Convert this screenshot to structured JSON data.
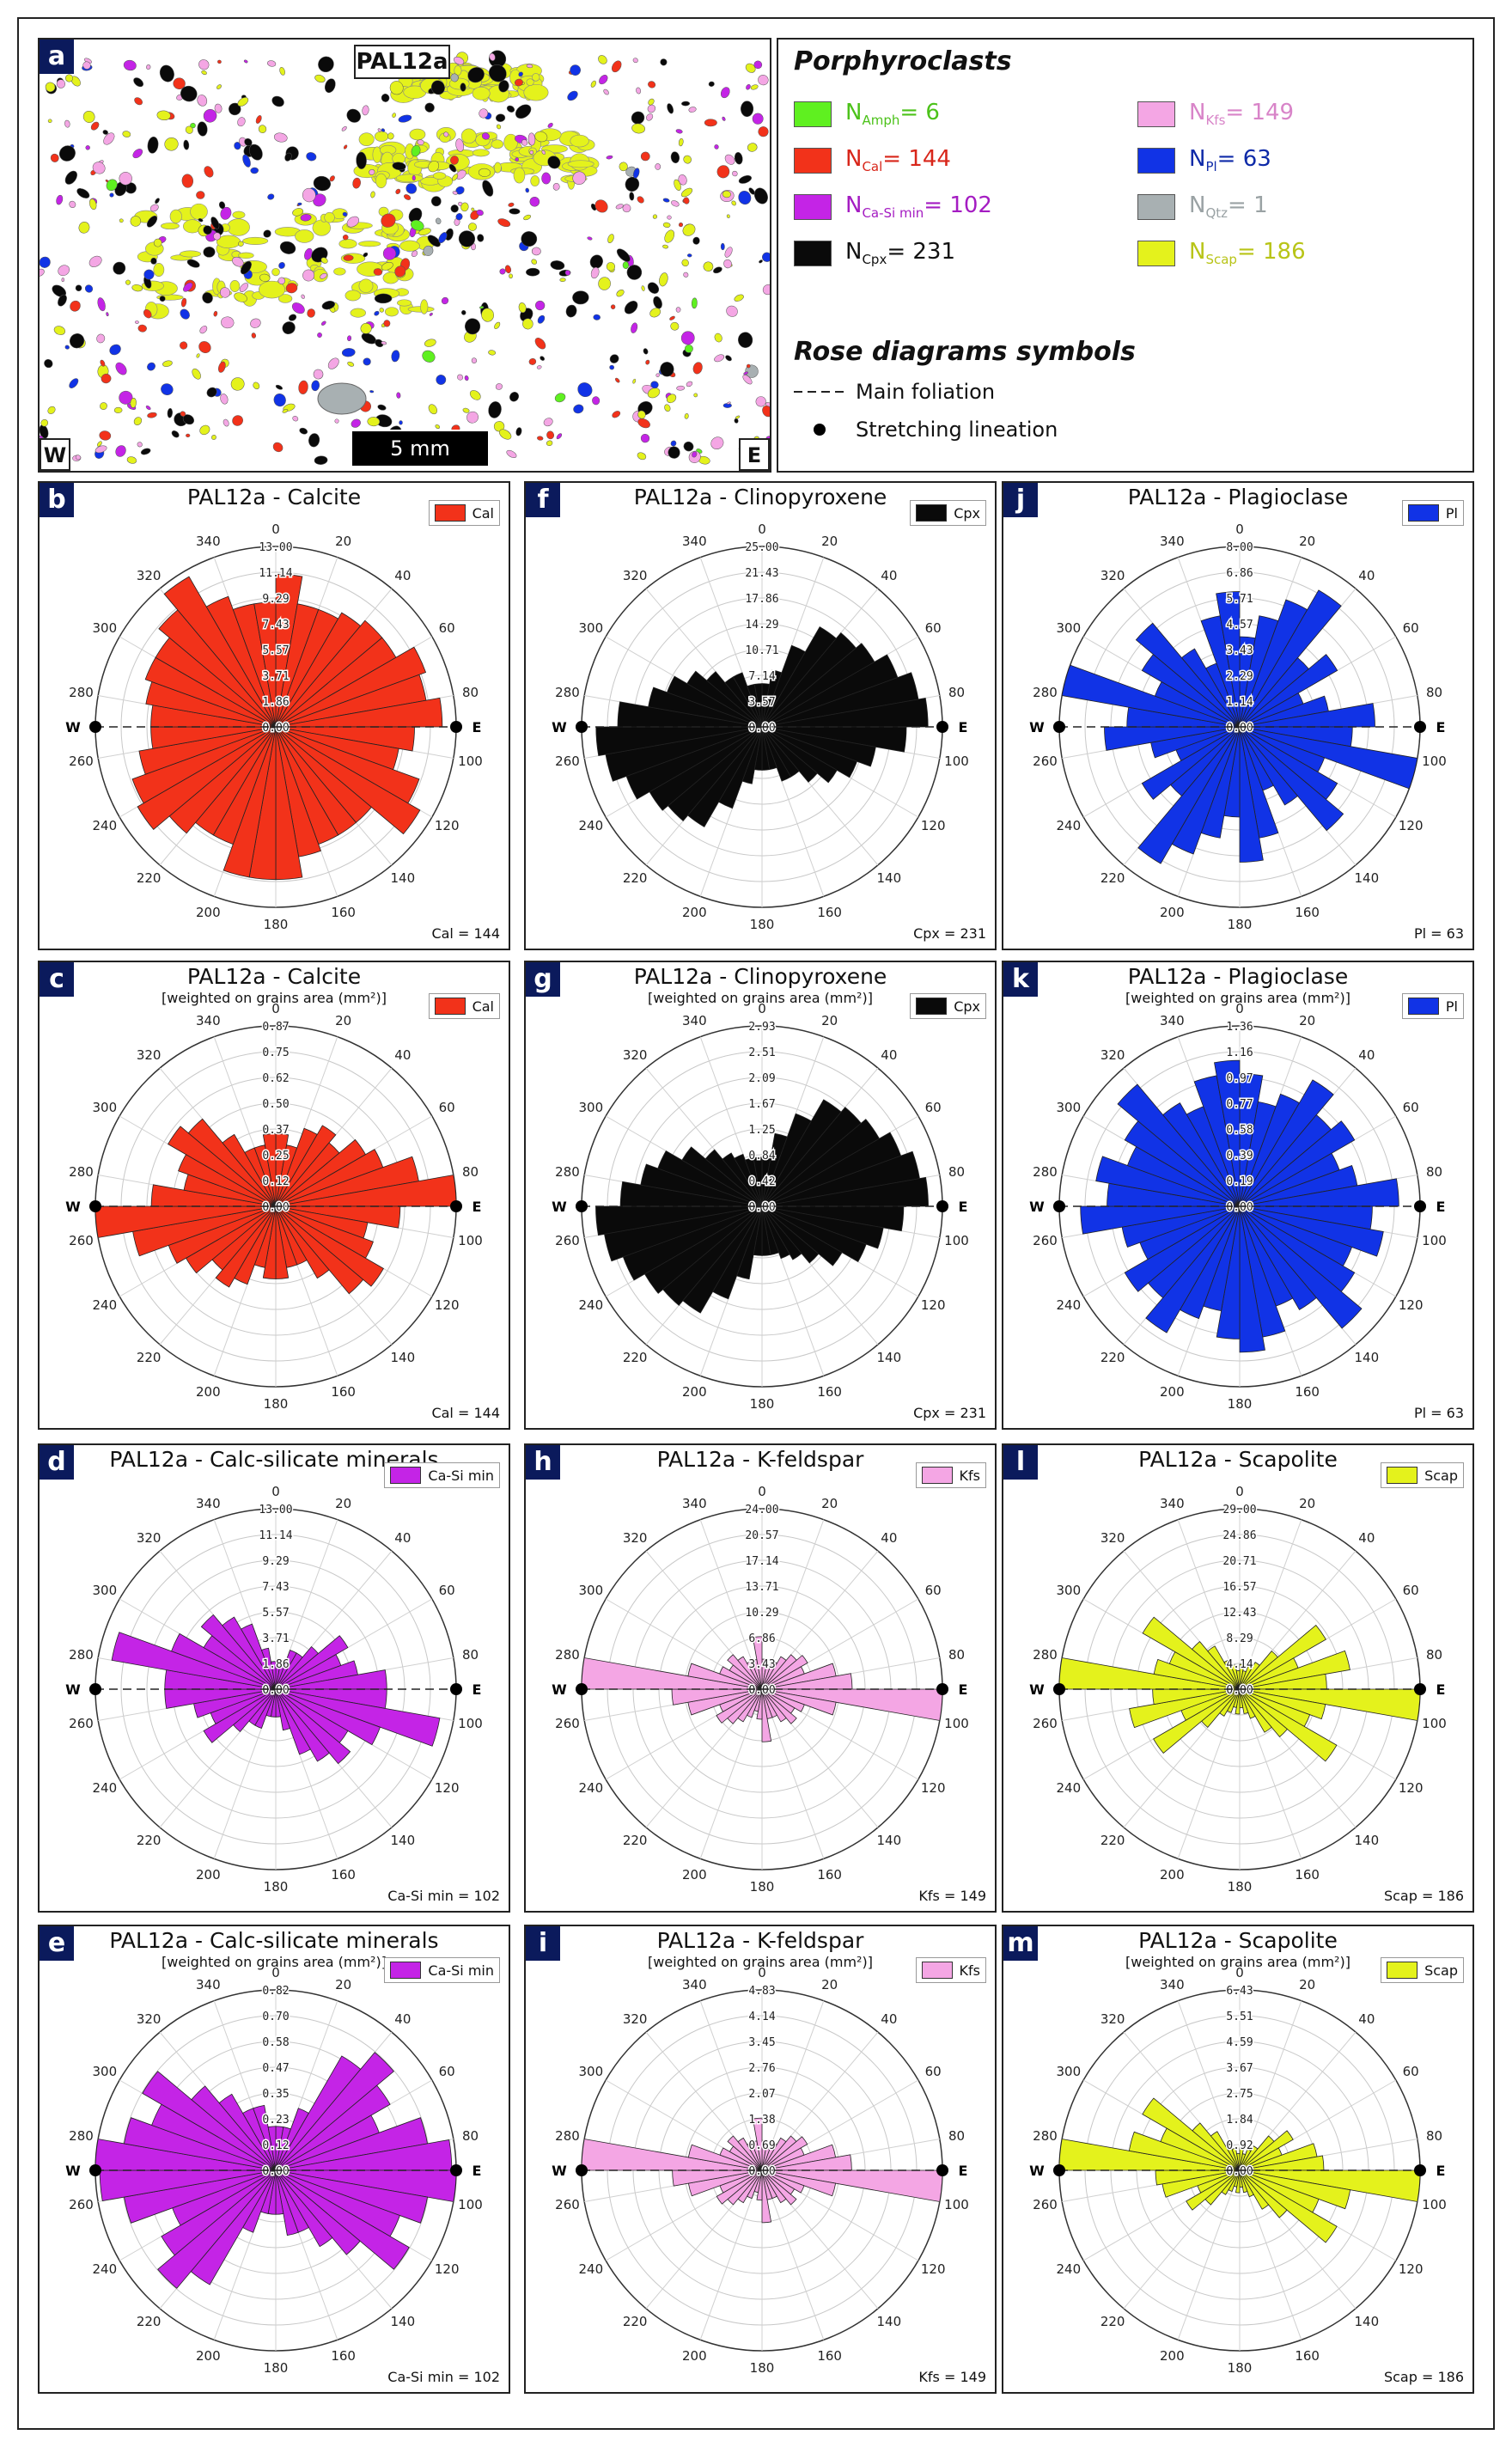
{
  "panel_a": {
    "letter": "a",
    "sample": "PAL12a",
    "scale_bar": "5 mm",
    "west": "W",
    "east": "E"
  },
  "legend": {
    "porphyroclasts_title": "Porphyroclasts",
    "items": [
      {
        "sym": "N",
        "sub": "Amph",
        "val": "= 6",
        "color": "#5ff020",
        "text_color": "#4cc21a"
      },
      {
        "sym": "N",
        "sub": "Cal",
        "val": "= 144",
        "color": "#f2321a",
        "text_color": "#d8261a"
      },
      {
        "sym": "N",
        "sub": "Ca-Si min",
        "val": "= 102",
        "color": "#c424e6",
        "text_color": "#a41cc2"
      },
      {
        "sym": "N",
        "sub": "Cpx",
        "val": "= 231",
        "color": "#0a0a0a",
        "text_color": "#111111"
      },
      {
        "sym": "N",
        "sub": "Kfs",
        "val": "= 149",
        "color": "#f4a6e4",
        "text_color": "#d884c8"
      },
      {
        "sym": "N",
        "sub": "Pl",
        "val": "= 63",
        "color": "#1133e6",
        "text_color": "#0e2aa8"
      },
      {
        "sym": "N",
        "sub": "Qtz",
        "val": "= 1",
        "color": "#a8b0b2",
        "text_color": "#9aa2a4"
      },
      {
        "sym": "N",
        "sub": "Scap",
        "val": "= 186",
        "color": "#e4f21c",
        "text_color": "#b8c417"
      }
    ],
    "symbols_title": "Rose diagrams symbols",
    "main_foliation": "Main foliation",
    "stretching_lineation": "Stretching lineation"
  },
  "angle_labels": [
    "0",
    "20",
    "40",
    "60",
    "80",
    "100",
    "120",
    "140",
    "160",
    "180",
    "200",
    "220",
    "240",
    "260",
    "280",
    "300",
    "320",
    "340"
  ],
  "chart_data": [
    {
      "id": "b",
      "type": "rose",
      "title": "PAL12a - Calcite",
      "subtitle": "",
      "legend": "Cal",
      "count": "Cal = 144",
      "color": "#f2321a",
      "radial_labels": [
        "0.00",
        "1.86",
        "3.71",
        "5.57",
        "7.43",
        "9.29",
        "11.14",
        "13.00"
      ],
      "rmax": 13.0,
      "values": [
        11,
        9,
        9,
        9.5,
        10,
        10,
        11.5,
        11,
        12,
        10,
        9,
        11,
        12,
        9,
        9,
        9,
        9.5,
        11,
        11,
        11,
        9,
        9,
        10,
        11.5,
        11,
        10,
        9,
        9,
        9.5,
        10,
        10,
        11,
        12.5,
        10,
        9,
        9
      ]
    },
    {
      "id": "f",
      "type": "rose",
      "title": "PAL12a - Clinopyroxene",
      "subtitle": "",
      "legend": "Cpx",
      "count": "Cpx = 231",
      "color": "#0a0a0a",
      "radial_labels": [
        "0.00",
        "3.57",
        "7.14",
        "10.71",
        "14.29",
        "17.86",
        "21.43",
        "25.00"
      ],
      "rmax": 25.0,
      "values": [
        6,
        8,
        12,
        16,
        17,
        18,
        20,
        22,
        23,
        20,
        16,
        14,
        12,
        10,
        8,
        8,
        6,
        6,
        6,
        8,
        12,
        16,
        17,
        18,
        20,
        22,
        23,
        20,
        16,
        14,
        12,
        10,
        8,
        8,
        6,
        6
      ]
    },
    {
      "id": "j",
      "type": "rose",
      "title": "PAL12a - Plagioclase",
      "subtitle": "",
      "legend": "Pl",
      "count": "Pl = 63",
      "color": "#1133e6",
      "radial_labels": [
        "0.00",
        "1.14",
        "2.29",
        "3.43",
        "4.57",
        "5.71",
        "6.86",
        "8.00"
      ],
      "rmax": 8.0,
      "values": [
        4,
        5,
        6,
        7,
        4,
        5,
        3,
        4,
        6,
        5,
        8,
        4,
        5,
        6,
        4,
        3,
        5,
        6,
        4,
        5,
        6,
        7,
        4,
        5,
        3,
        4,
        6,
        5,
        8,
        4,
        5,
        6,
        4,
        3,
        5,
        6
      ]
    },
    {
      "id": "c",
      "type": "rose",
      "title": "PAL12a - Calcite",
      "subtitle": "[weighted on grains area (mm²)]",
      "legend": "Cal",
      "count": "Cal = 144",
      "color": "#f2321a",
      "radial_labels": [
        "0.00",
        "0.12",
        "0.25",
        "0.37",
        "0.50",
        "0.62",
        "0.75",
        "0.87"
      ],
      "rmax": 0.87,
      "values": [
        0.35,
        0.3,
        0.4,
        0.45,
        0.4,
        0.5,
        0.55,
        0.7,
        0.87,
        0.6,
        0.45,
        0.5,
        0.6,
        0.55,
        0.4,
        0.3,
        0.3,
        0.35,
        0.35,
        0.3,
        0.4,
        0.45,
        0.4,
        0.5,
        0.55,
        0.7,
        0.87,
        0.6,
        0.45,
        0.5,
        0.6,
        0.55,
        0.4,
        0.3,
        0.3,
        0.35
      ]
    },
    {
      "id": "g",
      "type": "rose",
      "title": "PAL12a - Clinopyroxene",
      "subtitle": "[weighted on grains area (mm²)]",
      "legend": "Cpx",
      "count": "Cpx = 231",
      "color": "#0a0a0a",
      "radial_labels": [
        "0.00",
        "0.42",
        "0.84",
        "1.25",
        "1.67",
        "2.09",
        "2.51",
        "2.93"
      ],
      "rmax": 2.93,
      "values": [
        0.8,
        1.2,
        1.6,
        2.0,
        2.1,
        2.2,
        2.4,
        2.6,
        2.7,
        2.3,
        2.0,
        1.8,
        1.5,
        1.2,
        1.0,
        0.9,
        0.8,
        0.8,
        0.8,
        1.2,
        1.6,
        2.0,
        2.1,
        2.2,
        2.4,
        2.6,
        2.7,
        2.3,
        2.0,
        1.8,
        1.5,
        1.2,
        1.0,
        0.9,
        0.8,
        0.8
      ]
    },
    {
      "id": "k",
      "type": "rose",
      "title": "PAL12a - Plagioclase",
      "subtitle": "[weighted on grains area (mm²)]",
      "legend": "Pl",
      "count": "Pl = 63",
      "color": "#1133e6",
      "radial_labels": [
        "0.00",
        "0.19",
        "0.39",
        "0.58",
        "0.77",
        "0.97",
        "1.16",
        "1.36"
      ],
      "rmax": 1.36,
      "values": [
        1.0,
        0.8,
        0.9,
        1.1,
        0.9,
        1.0,
        0.8,
        0.9,
        1.2,
        1.0,
        1.1,
        0.9,
        1.0,
        1.2,
        0.9,
        0.8,
        1.0,
        1.1,
        1.0,
        0.8,
        0.9,
        1.1,
        0.9,
        1.0,
        0.8,
        0.9,
        1.2,
        1.0,
        1.1,
        0.9,
        1.0,
        1.2,
        0.9,
        0.8,
        1.0,
        1.1
      ]
    },
    {
      "id": "d",
      "type": "rose",
      "title": "PAL12a - Calc-silicate minerals",
      "subtitle": "",
      "legend": "Ca-Si min",
      "count": "Ca-Si min = 102",
      "color": "#c424e6",
      "radial_labels": [
        "0.00",
        "1.86",
        "3.71",
        "5.57",
        "7.43",
        "9.29",
        "11.14",
        "13.00"
      ],
      "rmax": 13.0,
      "values": [
        2,
        2,
        3,
        3,
        4,
        6,
        5,
        6,
        8,
        8,
        12,
        8,
        6,
        7,
        6,
        5,
        3,
        2,
        2,
        2,
        3,
        3,
        4,
        6,
        5,
        6,
        8,
        8,
        12,
        8,
        6,
        7,
        6,
        5,
        3,
        2
      ]
    },
    {
      "id": "h",
      "type": "rose",
      "title": "PAL12a - K-feldspar",
      "subtitle": "",
      "legend": "Kfs",
      "count": "Kfs = 149",
      "color": "#f4a6e4",
      "radial_labels": [
        "0.00",
        "3.43",
        "6.86",
        "10.29",
        "13.71",
        "17.14",
        "20.57",
        "24.00"
      ],
      "rmax": 24.0,
      "values": [
        4,
        3,
        4,
        5,
        6,
        7,
        6,
        10,
        12,
        24,
        10,
        6,
        5,
        6,
        5,
        4,
        4,
        7,
        4,
        3,
        4,
        5,
        6,
        7,
        6,
        10,
        12,
        24,
        10,
        6,
        5,
        6,
        5,
        4,
        4,
        7
      ]
    },
    {
      "id": "l",
      "type": "rose",
      "title": "PAL12a - Scapolite",
      "subtitle": "",
      "legend": "Scap",
      "count": "Scap = 186",
      "color": "#e4f21c",
      "radial_labels": [
        "0.00",
        "4.14",
        "8.29",
        "12.43",
        "16.57",
        "20.71",
        "24.86",
        "29.00"
      ],
      "rmax": 29.0,
      "values": [
        4,
        3,
        4,
        5,
        8,
        16,
        10,
        18,
        14,
        29,
        14,
        12,
        18,
        10,
        8,
        5,
        4,
        3,
        4,
        3,
        4,
        5,
        8,
        16,
        10,
        18,
        14,
        29,
        14,
        12,
        18,
        10,
        8,
        5,
        4,
        3
      ]
    },
    {
      "id": "e",
      "type": "rose",
      "title": "PAL12a - Calc-silicate minerals",
      "subtitle": "[weighted on grains area (mm²)]",
      "legend": "Ca-Si min",
      "count": "Ca-Si min = 102",
      "color": "#c424e6",
      "radial_labels": [
        "0.00",
        "0.12",
        "0.23",
        "0.35",
        "0.47",
        "0.58",
        "0.70",
        "0.82"
      ],
      "rmax": 0.82,
      "values": [
        0.2,
        0.2,
        0.3,
        0.6,
        0.7,
        0.6,
        0.5,
        0.7,
        0.8,
        0.82,
        0.7,
        0.6,
        0.7,
        0.5,
        0.4,
        0.3,
        0.3,
        0.2,
        0.2,
        0.2,
        0.3,
        0.6,
        0.7,
        0.6,
        0.5,
        0.7,
        0.8,
        0.82,
        0.7,
        0.6,
        0.7,
        0.5,
        0.4,
        0.3,
        0.3,
        0.2
      ]
    },
    {
      "id": "i",
      "type": "rose",
      "title": "PAL12a - K-feldspar",
      "subtitle": "[weighted on grains area (mm²)]",
      "legend": "Kfs",
      "count": "Kfs = 149",
      "color": "#f4a6e4",
      "radial_labels": [
        "0.00",
        "0.69",
        "1.38",
        "2.07",
        "2.76",
        "3.45",
        "4.14",
        "4.83"
      ],
      "rmax": 4.83,
      "values": [
        0.8,
        0.6,
        0.8,
        1.0,
        1.2,
        1.4,
        1.2,
        2.0,
        2.4,
        4.83,
        2.0,
        1.2,
        1.0,
        1.2,
        1.0,
        0.8,
        0.8,
        1.4,
        0.8,
        0.6,
        0.8,
        1.0,
        1.2,
        1.4,
        1.2,
        2.0,
        2.4,
        4.83,
        2.0,
        1.2,
        1.0,
        1.2,
        1.0,
        0.8,
        0.8,
        1.4
      ]
    },
    {
      "id": "m",
      "type": "rose",
      "title": "PAL12a - Scapolite",
      "subtitle": "[weighted on grains area (mm²)]",
      "legend": "Scap",
      "count": "Scap = 186",
      "color": "#e4f21c",
      "radial_labels": [
        "0.00",
        "0.92",
        "1.84",
        "2.75",
        "3.67",
        "4.59",
        "5.51",
        "6.43"
      ],
      "rmax": 6.43,
      "values": [
        0.8,
        0.6,
        0.8,
        1.0,
        1.6,
        2.2,
        1.6,
        2.8,
        3.0,
        6.43,
        4.0,
        3.0,
        4.0,
        2.2,
        1.6,
        1.0,
        0.8,
        0.6,
        0.8,
        0.6,
        0.8,
        1.0,
        1.6,
        2.2,
        1.6,
        2.8,
        3.0,
        6.43,
        4.0,
        3.0,
        4.0,
        2.2,
        1.6,
        1.0,
        0.8,
        0.6
      ]
    }
  ],
  "compass": {
    "w": "W",
    "e": "E"
  }
}
